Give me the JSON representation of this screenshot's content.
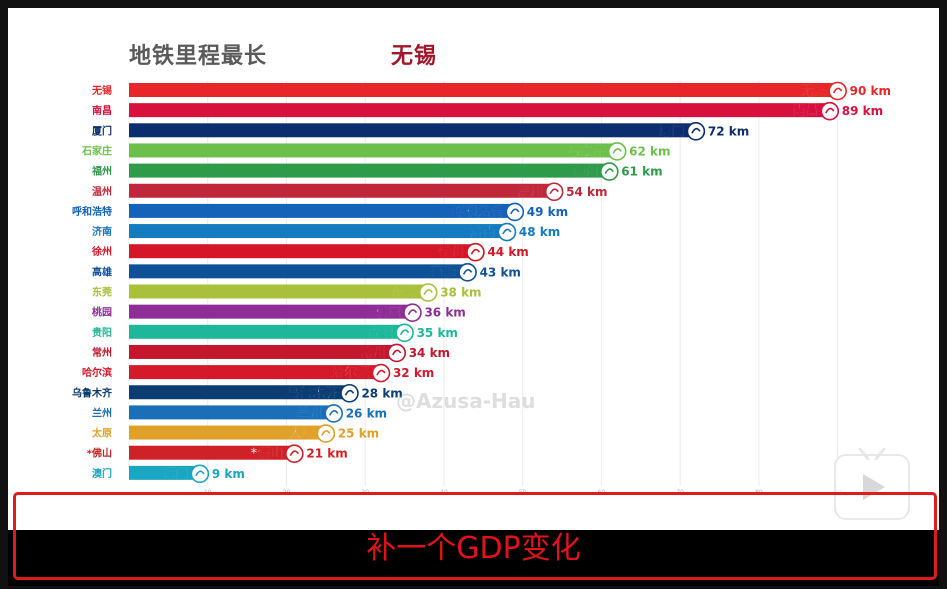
{
  "title": "地铁里程最长",
  "highlight_city": "无锡",
  "caption": "补一个GDP变化",
  "watermark": "@Azusa-Hau",
  "chart_data": {
    "type": "bar",
    "orientation": "horizontal",
    "unit": "km",
    "xlim": [
      0,
      95
    ],
    "x_ticks": [
      10,
      20,
      30,
      40,
      50,
      60,
      70,
      80,
      90
    ],
    "categories": [
      "无锡",
      "南昌",
      "厦门",
      "石家庄",
      "福州",
      "温州",
      "呼和浩特",
      "济南",
      "徐州",
      "高雄",
      "东莞",
      "桃园",
      "贵阳",
      "常州",
      "哈尔滨",
      "乌鲁木齐",
      "兰州",
      "太原",
      "*佛山",
      "澳门"
    ],
    "values": [
      90,
      89,
      72,
      62,
      61,
      54,
      49,
      48,
      44,
      43,
      38,
      36,
      35,
      34,
      32,
      28,
      26,
      25,
      21,
      9
    ],
    "value_labels": [
      "90 km",
      "89 km",
      "72 km",
      "62 km",
      "61 km",
      "54 km",
      "49 km",
      "48 km",
      "44 km",
      "43 km",
      "38 km",
      "36 km",
      "35 km",
      "34 km",
      "32 km",
      "28 km",
      "26 km",
      "25 km",
      "21 km",
      "9 km"
    ],
    "colors": [
      "#e8262a",
      "#d8103e",
      "#0d2e6e",
      "#6dbf4b",
      "#2f9a4a",
      "#c1273a",
      "#1463b8",
      "#157bbf",
      "#d51628",
      "#0f5196",
      "#a9c13a",
      "#8e2d96",
      "#1fb79a",
      "#c4162c",
      "#d41a2a",
      "#0b3c72",
      "#1a6fb8",
      "#e0a12a",
      "#cf2226",
      "#1aa6c0"
    ]
  }
}
